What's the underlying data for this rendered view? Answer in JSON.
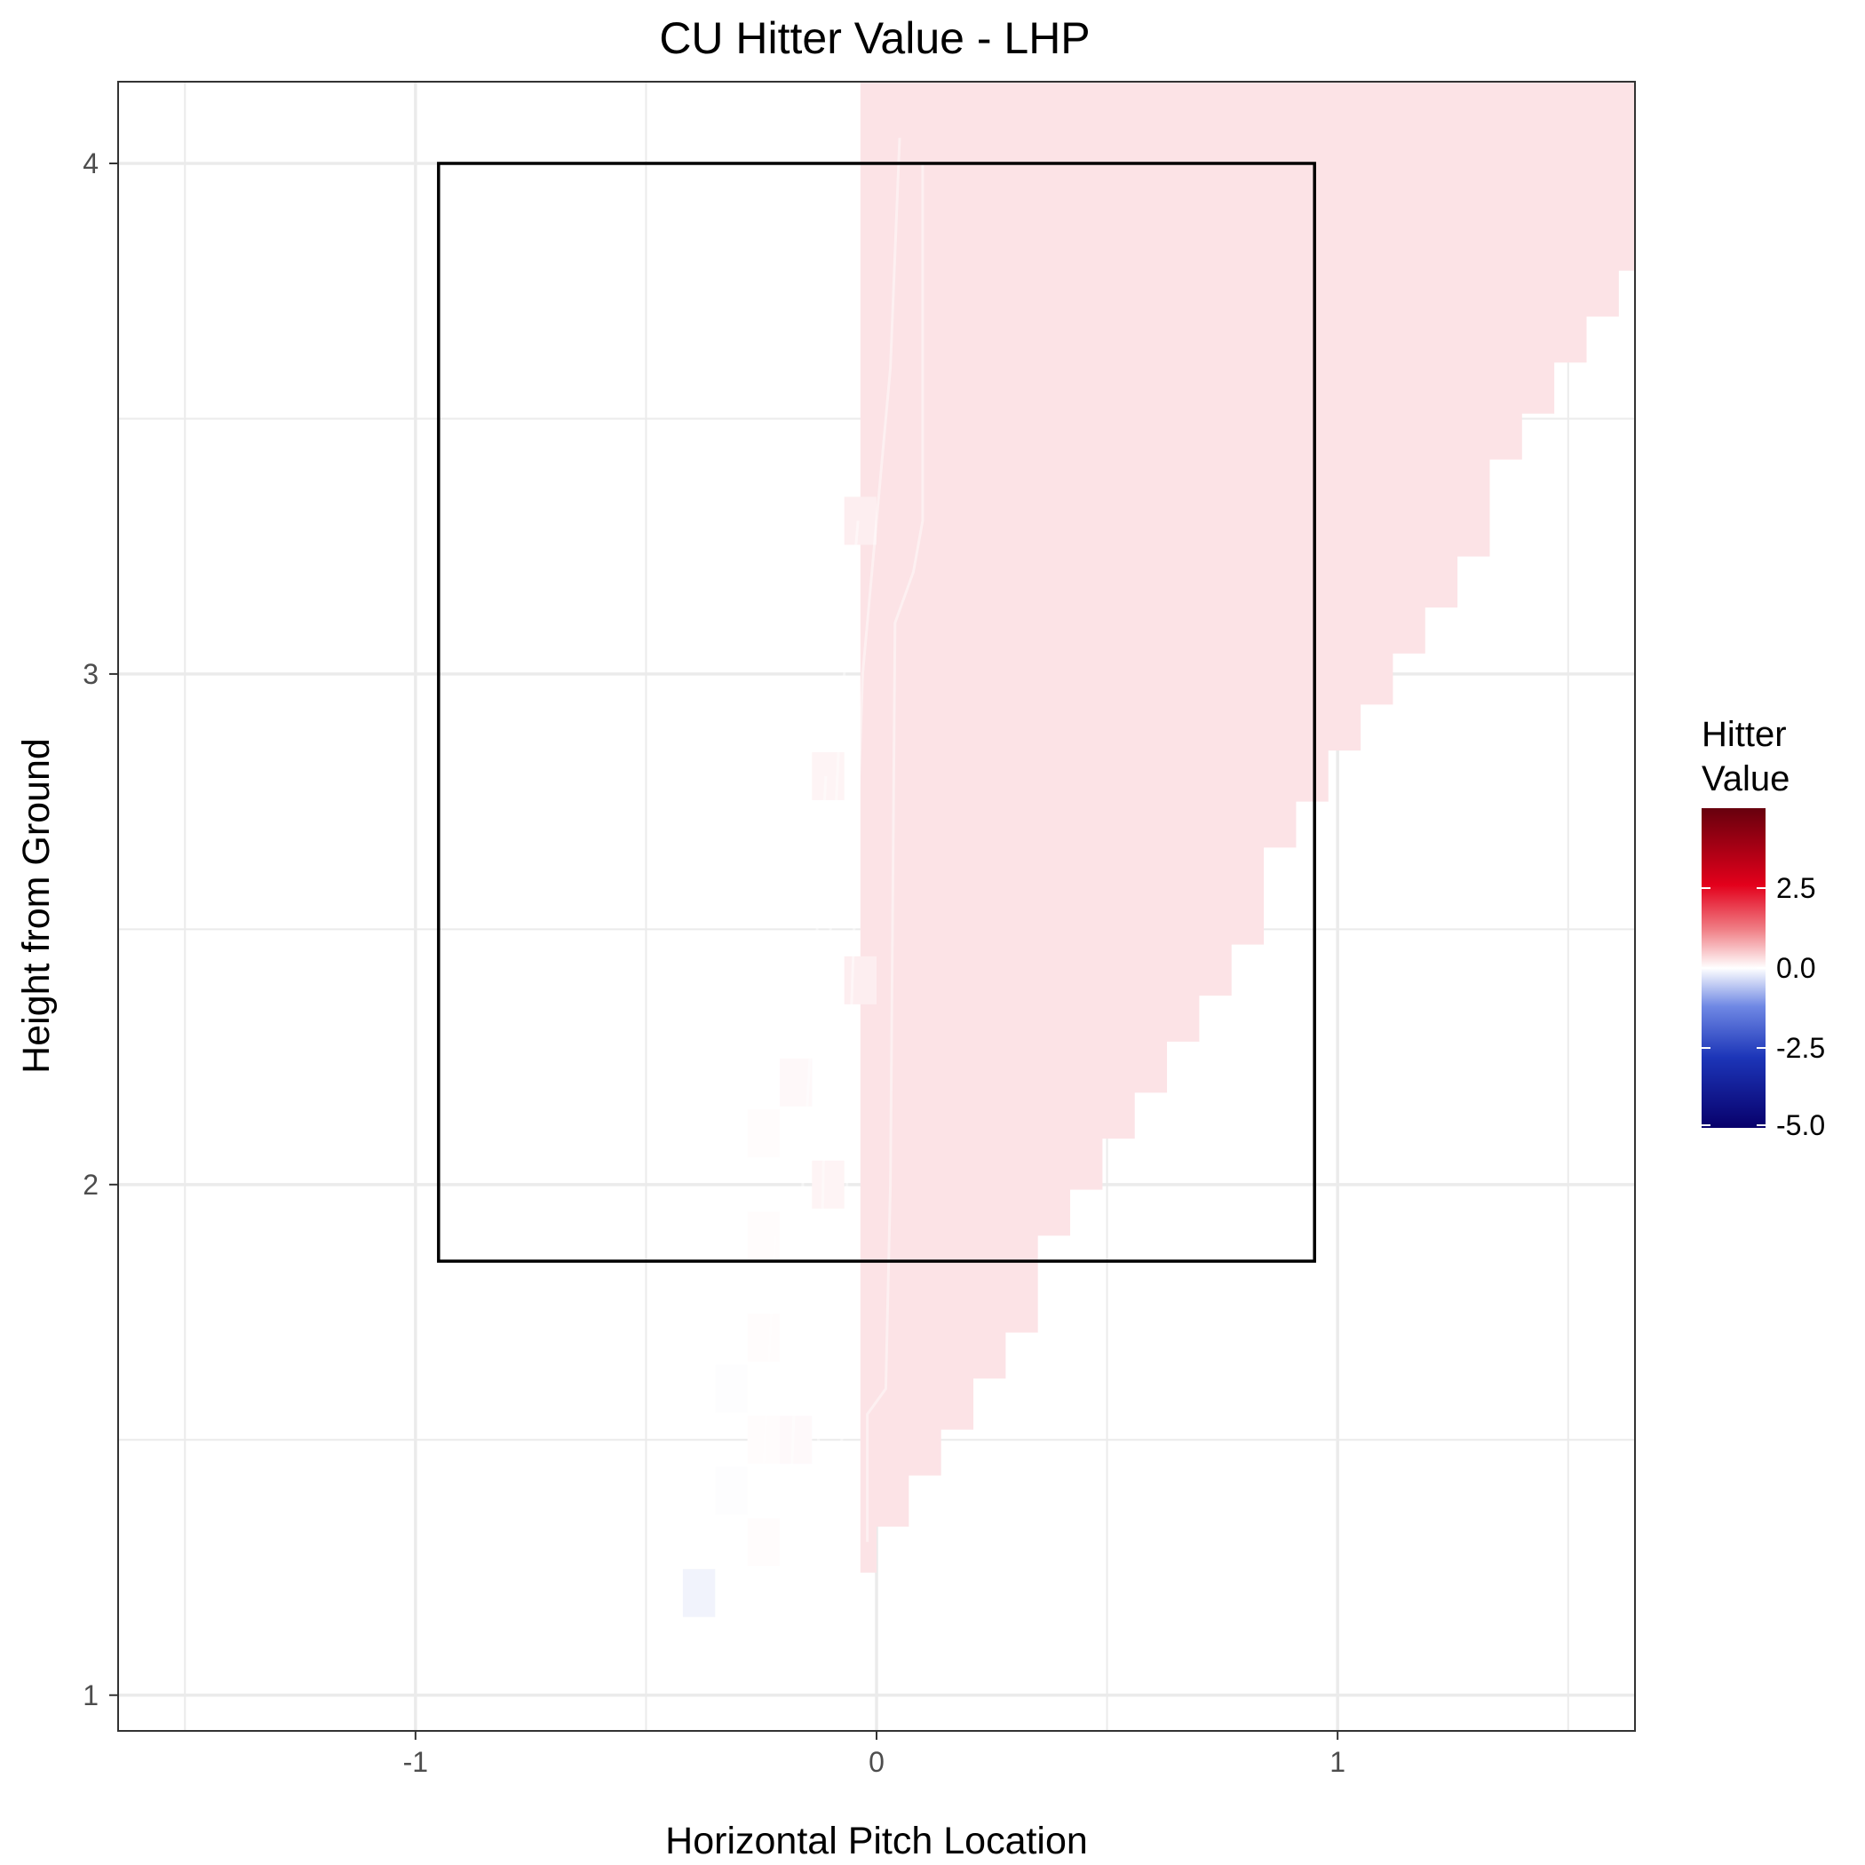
{
  "chart_data": {
    "type": "heatmap",
    "title": "CU Hitter Value - LHP",
    "xlabel": "Horizontal Pitch Location",
    "ylabel": "Height from Ground",
    "xlim": [
      -1.645,
      1.645
    ],
    "ylim": [
      0.93,
      4.16
    ],
    "x_ticks": [
      {
        "value": -1,
        "label": "-1"
      },
      {
        "value": 0,
        "label": "0"
      },
      {
        "value": 1,
        "label": "1"
      }
    ],
    "y_ticks": [
      {
        "value": 1,
        "label": "1"
      },
      {
        "value": 2,
        "label": "2"
      },
      {
        "value": 3,
        "label": "3"
      },
      {
        "value": 4,
        "label": "4"
      }
    ],
    "grid": true,
    "strike_zone": {
      "x": [
        -0.95,
        0.95
      ],
      "y": [
        1.85,
        4.0
      ]
    },
    "tile_size": {
      "dx": 0.07,
      "dy": 0.094
    },
    "tiles": [
      {
        "x": -0.385,
        "y": 1.2,
        "v": -0.3
      },
      {
        "x": -0.315,
        "y": 1.4,
        "v": -0.05
      },
      {
        "x": -0.315,
        "y": 1.6,
        "v": -0.05
      },
      {
        "x": -0.245,
        "y": 1.3,
        "v": 0.05
      },
      {
        "x": -0.245,
        "y": 1.5,
        "v": 0.05
      },
      {
        "x": -0.245,
        "y": 1.7,
        "v": 0.05
      },
      {
        "x": -0.245,
        "y": 1.9,
        "v": 0.05
      },
      {
        "x": -0.245,
        "y": 2.1,
        "v": 0.05
      },
      {
        "x": -0.175,
        "y": 1.5,
        "v": 0.1
      },
      {
        "x": -0.175,
        "y": 2.2,
        "v": 0.12
      },
      {
        "x": -0.105,
        "y": 2.0,
        "v": 0.2
      },
      {
        "x": -0.105,
        "y": 2.8,
        "v": 0.2
      },
      {
        "x": -0.035,
        "y": 2.4,
        "v": 0.3
      },
      {
        "x": -0.035,
        "y": 3.3,
        "v": 0.3
      }
    ],
    "main_region": {
      "value": 0.5,
      "left_x": -0.035,
      "left_steps": [
        {
          "x": 0.0,
          "y_bottom": 1.24
        },
        {
          "x": 0.07,
          "y_bottom": 1.33
        },
        {
          "x": 0.14,
          "y_bottom": 1.43
        },
        {
          "x": 0.21,
          "y_bottom": 1.52
        },
        {
          "x": 0.28,
          "y_bottom": 1.62
        },
        {
          "x": 0.35,
          "y_bottom": 1.71
        },
        {
          "x": 0.42,
          "y_bottom": 1.9
        },
        {
          "x": 0.49,
          "y_bottom": 1.99
        },
        {
          "x": 0.56,
          "y_bottom": 2.09
        },
        {
          "x": 0.63,
          "y_bottom": 2.18
        },
        {
          "x": 0.7,
          "y_bottom": 2.28
        },
        {
          "x": 0.77,
          "y_bottom": 2.37
        },
        {
          "x": 0.84,
          "y_bottom": 2.47
        },
        {
          "x": 0.91,
          "y_bottom": 2.66
        },
        {
          "x": 0.98,
          "y_bottom": 2.75
        },
        {
          "x": 1.05,
          "y_bottom": 2.85
        },
        {
          "x": 1.12,
          "y_bottom": 2.94
        },
        {
          "x": 1.19,
          "y_bottom": 3.04
        },
        {
          "x": 1.26,
          "y_bottom": 3.13
        },
        {
          "x": 1.33,
          "y_bottom": 3.23
        },
        {
          "x": 1.4,
          "y_bottom": 3.42
        },
        {
          "x": 1.47,
          "y_bottom": 3.51
        },
        {
          "x": 1.54,
          "y_bottom": 3.61
        },
        {
          "x": 1.61,
          "y_bottom": 3.7
        },
        {
          "x": 1.645,
          "y_bottom": 3.79
        }
      ]
    },
    "legend": {
      "title_line1": "Hitter",
      "title_line2": "Value",
      "placement": "right",
      "min": -5.0,
      "max": 5.0,
      "ticks": [
        {
          "value": 2.5,
          "label": "2.5"
        },
        {
          "value": 0.0,
          "label": "0.0"
        },
        {
          "value": -2.5,
          "label": "-2.5"
        },
        {
          "value": -5.0,
          "label": "-5.0"
        }
      ],
      "colors": {
        "high": "#67000d",
        "mid_high": "#e3001b",
        "zero": "#ffffff",
        "mid_low": "#2a4bd0",
        "low": "#08006b"
      }
    }
  }
}
